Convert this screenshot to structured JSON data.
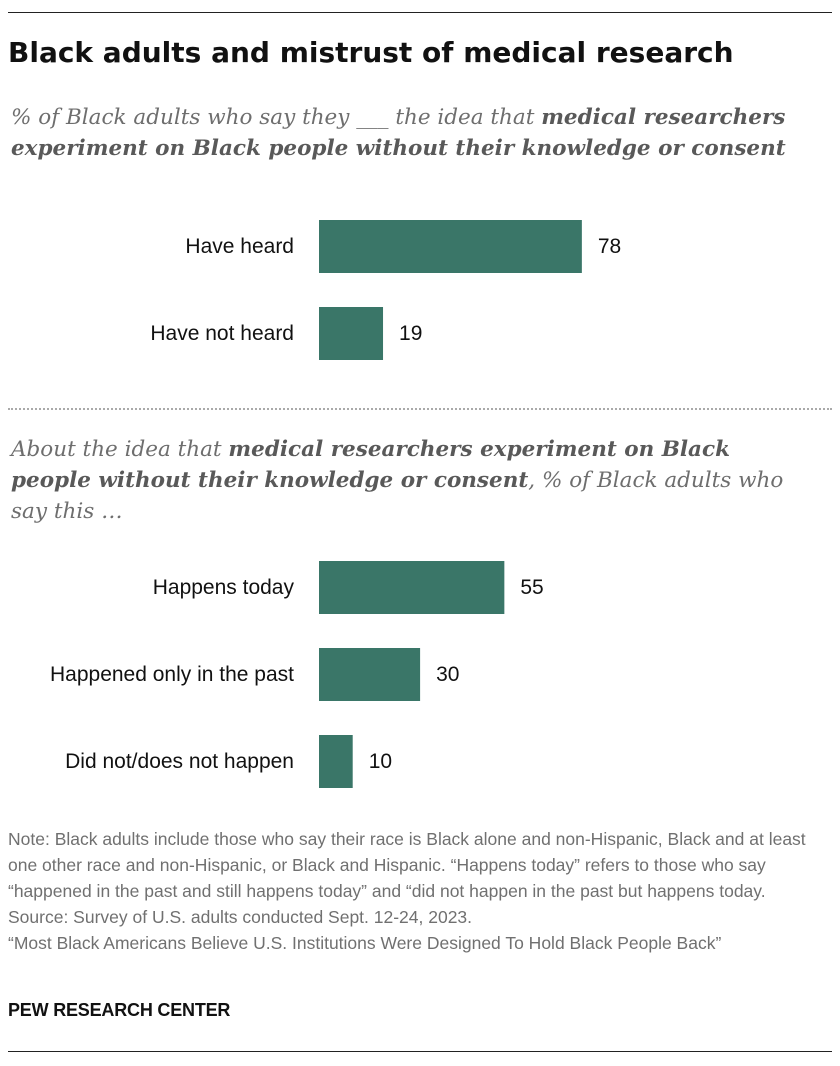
{
  "title": "Black adults and mistrust of medical research",
  "colors": {
    "bar": "#3a7668",
    "text": "#111111",
    "muted": "#6e6e6e"
  },
  "section1": {
    "subtitle_pre": "% of Black adults who say they ___ the idea that ",
    "subtitle_bold": "medical researchers experiment on Black people without their knowledge or consent",
    "subtitle_post": ""
  },
  "section2": {
    "subtitle_pre": "About the idea that ",
    "subtitle_bold": "medical researchers experiment on Black people without their knowledge or consent",
    "subtitle_post": ", % of Black adults who say this …"
  },
  "chart_data": [
    {
      "type": "bar",
      "orientation": "horizontal",
      "categories": [
        "Have heard",
        "Have not heard"
      ],
      "values": [
        78,
        19
      ],
      "xlim": [
        0,
        100
      ],
      "data_labels": true,
      "grid": false
    },
    {
      "type": "bar",
      "orientation": "horizontal",
      "categories": [
        "Happens today",
        "Happened only in the past",
        "Did not/does not happen"
      ],
      "values": [
        55,
        30,
        10
      ],
      "xlim": [
        0,
        100
      ],
      "data_labels": true,
      "grid": false
    }
  ],
  "notes": {
    "note": "Note: Black adults include those who say their race is Black alone and non-Hispanic, Black and at least one other race and non-Hispanic, or Black and Hispanic. “Happens today” refers to those who say “happened in the past and still happens today” and “did not happen in the past but happens today.",
    "source": "Source: Survey of U.S. adults conducted Sept. 12-24, 2023.",
    "report": "“Most Black Americans Believe U.S. Institutions Were Designed To Hold Black People Back”"
  },
  "logo": "PEW RESEARCH CENTER"
}
